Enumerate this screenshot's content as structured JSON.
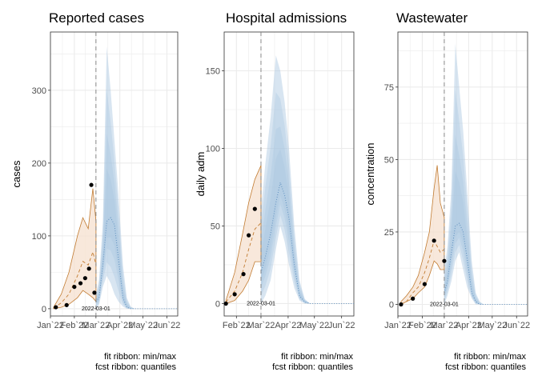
{
  "colors": {
    "fit": "#c27c32",
    "fit_fill": "#f6e0cf",
    "forecast": "#5e8fbf",
    "forecast_fill": "#a9c6e0",
    "grid": "#ebebeb",
    "vline": "#7f7f7f"
  },
  "chart_data": [
    {
      "type": "area",
      "title": "Reported cases",
      "ylabel": "cases",
      "xlabel": "",
      "x_ticks": [
        "Jan`22",
        "Feb`22",
        "Mar`22",
        "Apr`22",
        "May`22",
        "Jun`22"
      ],
      "y_ticks": [
        0,
        100,
        200,
        300
      ],
      "xlim": [
        "2022-01-01",
        "2022-06-15"
      ],
      "ylim": [
        -10,
        380
      ],
      "grid": true,
      "vline_date": "2022-03-01",
      "vline_label": "2022-03-01",
      "observed": [
        {
          "x": "2022-01-08",
          "y": 2
        },
        {
          "x": "2022-01-22",
          "y": 5
        },
        {
          "x": "2022-02-01",
          "y": 30
        },
        {
          "x": "2022-02-09",
          "y": 35
        },
        {
          "x": "2022-02-15",
          "y": 42
        },
        {
          "x": "2022-02-20",
          "y": 55
        },
        {
          "x": "2022-02-23",
          "y": 170
        },
        {
          "x": "2022-02-27",
          "y": 22
        }
      ],
      "fit_ribbon": {
        "x": [
          "2022-01-05",
          "2022-01-15",
          "2022-01-25",
          "2022-02-05",
          "2022-02-12",
          "2022-02-19",
          "2022-02-25",
          "2022-03-01"
        ],
        "lower": [
          0,
          2,
          6,
          15,
          25,
          20,
          15,
          10
        ],
        "upper": [
          2,
          20,
          50,
          100,
          125,
          110,
          165,
          120
        ]
      },
      "fit_median": {
        "x": [
          "2022-01-05",
          "2022-01-15",
          "2022-01-25",
          "2022-02-05",
          "2022-02-12",
          "2022-02-19",
          "2022-02-25",
          "2022-03-01"
        ],
        "y": [
          1,
          8,
          20,
          45,
          65,
          60,
          78,
          60
        ]
      },
      "forecast_ribbon": {
        "x": [
          "2022-03-01",
          "2022-03-05",
          "2022-03-10",
          "2022-03-15",
          "2022-03-20",
          "2022-03-25",
          "2022-03-30",
          "2022-04-05",
          "2022-04-10",
          "2022-04-15",
          "2022-04-20"
        ],
        "lower": [
          0,
          5,
          30,
          45,
          35,
          20,
          10,
          3,
          0,
          0,
          0
        ],
        "upper": [
          20,
          40,
          120,
          360,
          300,
          230,
          160,
          60,
          15,
          3,
          0
        ]
      },
      "forecast_median": {
        "x": [
          "2022-03-01",
          "2022-03-05",
          "2022-03-10",
          "2022-03-15",
          "2022-03-20",
          "2022-03-25",
          "2022-03-30",
          "2022-04-05",
          "2022-04-10",
          "2022-04-15",
          "2022-04-20",
          "2022-06-15"
        ],
        "y": [
          10,
          15,
          60,
          120,
          125,
          115,
          70,
          15,
          2,
          0,
          0,
          0
        ]
      },
      "caption": [
        "fit ribbon: min/max",
        "fcst ribbon: quantiles"
      ]
    },
    {
      "type": "area",
      "title": "Hospital admissions",
      "ylabel": "daily adm",
      "xlabel": "",
      "x_ticks": [
        "Feb`22",
        "Mar`22",
        "Apr`22",
        "May`22",
        "Jun`22"
      ],
      "y_ticks": [
        0,
        50,
        100,
        150
      ],
      "xlim": [
        "2022-01-18",
        "2022-06-15"
      ],
      "ylim": [
        -8,
        175
      ],
      "grid": true,
      "vline_date": "2022-03-01",
      "vline_label": "2022-03-01",
      "observed": [
        {
          "x": "2022-01-20",
          "y": 0
        },
        {
          "x": "2022-01-30",
          "y": 6
        },
        {
          "x": "2022-02-09",
          "y": 19
        },
        {
          "x": "2022-02-15",
          "y": 44
        },
        {
          "x": "2022-02-22",
          "y": 61
        }
      ],
      "fit_ribbon": {
        "x": [
          "2022-01-20",
          "2022-01-30",
          "2022-02-08",
          "2022-02-15",
          "2022-02-22",
          "2022-03-01"
        ],
        "lower": [
          0,
          2,
          8,
          15,
          27,
          27
        ],
        "upper": [
          2,
          20,
          45,
          65,
          80,
          89
        ]
      },
      "fit_median": {
        "x": [
          "2022-01-20",
          "2022-01-30",
          "2022-02-08",
          "2022-02-15",
          "2022-02-22",
          "2022-03-01"
        ],
        "y": [
          1,
          8,
          20,
          35,
          48,
          52
        ]
      },
      "forecast_ribbon": {
        "x": [
          "2022-03-01",
          "2022-03-06",
          "2022-03-12",
          "2022-03-18",
          "2022-03-23",
          "2022-03-28",
          "2022-04-02",
          "2022-04-08",
          "2022-04-14",
          "2022-04-20",
          "2022-04-26"
        ],
        "lower": [
          0,
          5,
          15,
          35,
          50,
          40,
          25,
          10,
          2,
          0,
          0
        ],
        "upper": [
          60,
          90,
          120,
          160,
          150,
          130,
          100,
          50,
          15,
          3,
          0
        ]
      },
      "forecast_median": {
        "x": [
          "2022-03-01",
          "2022-03-06",
          "2022-03-12",
          "2022-03-18",
          "2022-03-23",
          "2022-03-28",
          "2022-04-02",
          "2022-04-08",
          "2022-04-14",
          "2022-04-20",
          "2022-04-26",
          "2022-06-15"
        ],
        "y": [
          20,
          30,
          45,
          65,
          78,
          70,
          55,
          25,
          5,
          1,
          0,
          0
        ]
      },
      "caption": [
        "fit ribbon: min/max",
        "fcst ribbon: quantiles"
      ]
    },
    {
      "type": "area",
      "title": "Wastewater",
      "ylabel": "concentration",
      "xlabel": "",
      "x_ticks": [
        "Jan`22",
        "Feb`22",
        "Mar`22",
        "Apr`22",
        "May`22",
        "Jun`22"
      ],
      "y_ticks": [
        0,
        25,
        50,
        75
      ],
      "xlim": [
        "2022-01-01",
        "2022-06-15"
      ],
      "ylim": [
        -4,
        94
      ],
      "grid": true,
      "vline_date": "2022-03-01",
      "vline_label": "2022-03-01",
      "observed": [
        {
          "x": "2022-01-05",
          "y": 0
        },
        {
          "x": "2022-01-20",
          "y": 2
        },
        {
          "x": "2022-02-04",
          "y": 7
        },
        {
          "x": "2022-02-16",
          "y": 22
        },
        {
          "x": "2022-03-01",
          "y": 15
        }
      ],
      "fit_ribbon": {
        "x": [
          "2022-01-05",
          "2022-01-12",
          "2022-01-20",
          "2022-01-27",
          "2022-02-04",
          "2022-02-10",
          "2022-02-16",
          "2022-02-20",
          "2022-02-24",
          "2022-03-01"
        ],
        "lower": [
          0,
          1,
          2,
          4,
          6,
          10,
          15,
          14,
          12,
          12
        ],
        "upper": [
          1,
          3,
          6,
          10,
          18,
          25,
          40,
          48,
          35,
          30
        ]
      },
      "fit_median": {
        "x": [
          "2022-01-05",
          "2022-01-12",
          "2022-01-20",
          "2022-01-27",
          "2022-02-04",
          "2022-02-10",
          "2022-02-16",
          "2022-02-20",
          "2022-02-24",
          "2022-03-01"
        ],
        "y": [
          0,
          1,
          4,
          6,
          11,
          16,
          22,
          20,
          18,
          19
        ]
      },
      "forecast_ribbon": {
        "x": [
          "2022-03-01",
          "2022-03-05",
          "2022-03-10",
          "2022-03-15",
          "2022-03-20",
          "2022-03-25",
          "2022-03-30",
          "2022-04-05",
          "2022-04-10",
          "2022-04-15",
          "2022-04-20"
        ],
        "lower": [
          0,
          3,
          8,
          15,
          18,
          12,
          6,
          2,
          0,
          0,
          0
        ],
        "upper": [
          12,
          20,
          40,
          90,
          75,
          60,
          40,
          15,
          4,
          1,
          0
        ]
      },
      "forecast_median": {
        "x": [
          "2022-03-01",
          "2022-03-05",
          "2022-03-10",
          "2022-03-15",
          "2022-03-20",
          "2022-03-25",
          "2022-03-30",
          "2022-04-05",
          "2022-04-10",
          "2022-04-15",
          "2022-04-20",
          "2022-06-15"
        ],
        "y": [
          4,
          8,
          18,
          27,
          28,
          25,
          16,
          4,
          1,
          0,
          0,
          0
        ]
      },
      "caption": [
        "fit ribbon: min/max",
        "fcst ribbon: quantiles"
      ]
    }
  ]
}
